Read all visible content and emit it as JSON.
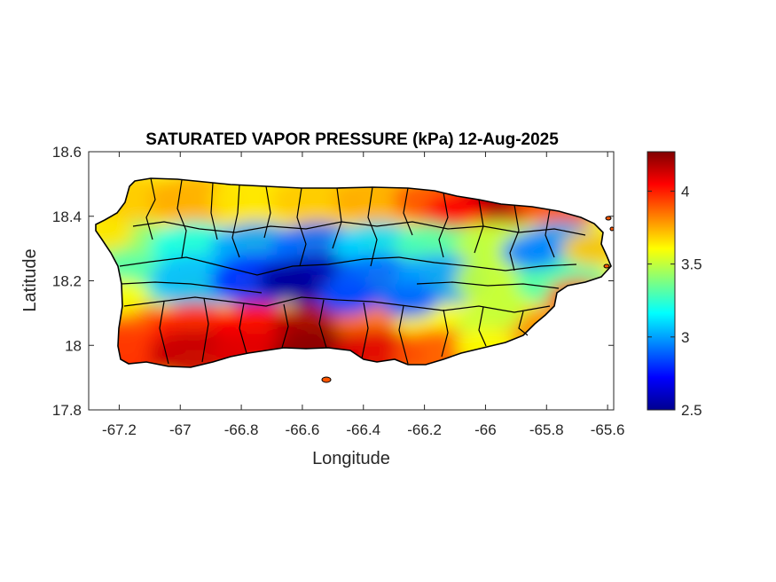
{
  "chart_data": {
    "type": "heatmap",
    "title": "SATURATED VAPOR PRESSURE (kPa) 12-Aug-2025",
    "xlabel": "Longitude",
    "ylabel": "Latitude",
    "xlim": [
      -67.3,
      -65.58
    ],
    "ylim": [
      17.8,
      18.6
    ],
    "xticks": [
      -67.2,
      -67,
      -66.8,
      -66.6,
      -66.4,
      -66.2,
      -66,
      -65.8,
      -65.6
    ],
    "xtick_labels": [
      "-67.2",
      "-67",
      "-66.8",
      "-66.6",
      "-66.4",
      "-66.2",
      "-66",
      "-65.8",
      "-65.6"
    ],
    "yticks": [
      17.8,
      18,
      18.2,
      18.4,
      18.6
    ],
    "ytick_labels": [
      "17.8",
      "18",
      "18.2",
      "18.4",
      "18.6"
    ],
    "colorbar": {
      "colormap": "jet",
      "clim": [
        2.5,
        4.27
      ],
      "ticks": [
        2.5,
        3,
        3.5,
        4
      ],
      "tick_labels": [
        "2.5",
        "3",
        "3.5",
        "4"
      ]
    },
    "grid": false,
    "field_samples": {
      "description_units": "kPa",
      "lon": [
        -67.15,
        -66.95,
        -66.75,
        -66.55,
        -66.35,
        -66.15,
        -65.95,
        -65.75
      ],
      "lat": [
        18.45,
        18.3,
        18.2,
        18.05,
        17.97
      ],
      "values": [
        [
          3.7,
          3.75,
          3.65,
          3.7,
          3.75,
          3.9,
          4.15,
          3.9
        ],
        [
          3.4,
          3.2,
          3.0,
          2.9,
          3.1,
          3.3,
          3.5,
          3.0
        ],
        [
          3.3,
          3.05,
          2.8,
          2.6,
          2.9,
          3.0,
          3.5,
          3.3
        ],
        [
          3.9,
          4.0,
          4.05,
          4.2,
          3.85,
          3.6,
          3.5,
          3.8
        ],
        [
          4.0,
          4.15,
          4.1,
          4.25,
          4.1,
          3.9,
          3.8,
          3.8
        ]
      ]
    }
  }
}
